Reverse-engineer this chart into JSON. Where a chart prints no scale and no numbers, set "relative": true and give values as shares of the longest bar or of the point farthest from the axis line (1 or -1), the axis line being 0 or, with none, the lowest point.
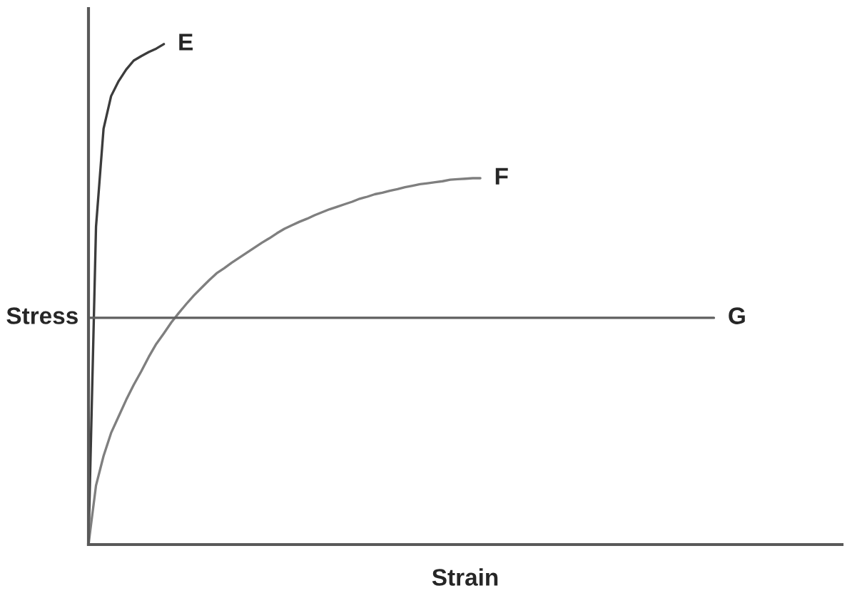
{
  "chart_data": {
    "type": "line",
    "relative": true,
    "xlabel": "Strain",
    "ylabel": "Stress",
    "categories": [
      null,
      null,
      null,
      null,
      null,
      null,
      null,
      null,
      null,
      null,
      null,
      null,
      null,
      null,
      null,
      null,
      null,
      null,
      null,
      null,
      null,
      null,
      null,
      null,
      null,
      null,
      null,
      null,
      null,
      null,
      null,
      null,
      null,
      null,
      null,
      null,
      null,
      null,
      null,
      null,
      null,
      null,
      null,
      null,
      null,
      null,
      null,
      null,
      null,
      null,
      null,
      null,
      null,
      null,
      null,
      null,
      null,
      null,
      null,
      null,
      null,
      null,
      null,
      null,
      null,
      null,
      null,
      null,
      null,
      null,
      null,
      null,
      null,
      null,
      null,
      null,
      null,
      null,
      null,
      null,
      null,
      null,
      null,
      null,
      null,
      null,
      null,
      null,
      null,
      null,
      null,
      null,
      null,
      null,
      null,
      null,
      null,
      null,
      null,
      null,
      null
    ],
    "series": [
      {
        "name": "E",
        "color": "#3c3c3c",
        "values": [
          0,
          0.635,
          0.831,
          0.896,
          0.926,
          0.949,
          0.967,
          0.976,
          0.984,
          0.991,
          1.0,
          null,
          null,
          null,
          null,
          null,
          null,
          null,
          null,
          null,
          null,
          null,
          null,
          null,
          null,
          null,
          null,
          null,
          null,
          null,
          null,
          null,
          null,
          null,
          null,
          null,
          null,
          null,
          null,
          null,
          null,
          null,
          null,
          null,
          null,
          null,
          null,
          null,
          null,
          null,
          null,
          null,
          null,
          null,
          null,
          null,
          null,
          null,
          null,
          null,
          null,
          null,
          null,
          null,
          null,
          null,
          null,
          null,
          null,
          null,
          null,
          null,
          null,
          null,
          null,
          null,
          null,
          null,
          null,
          null,
          null,
          null,
          null,
          null,
          null,
          null,
          null,
          null,
          null,
          null,
          null,
          null,
          null,
          null,
          null,
          null,
          null,
          null,
          null,
          null,
          null
        ]
      },
      {
        "name": "F",
        "color": "#7f7f7f",
        "values": [
          0,
          0.118,
          0.177,
          0.223,
          0.256,
          0.289,
          0.319,
          0.346,
          0.375,
          0.401,
          0.422,
          0.444,
          0.463,
          0.481,
          0.498,
          0.513,
          0.528,
          0.542,
          0.552,
          0.563,
          0.573,
          0.583,
          0.593,
          0.603,
          0.612,
          0.622,
          0.631,
          0.638,
          0.645,
          0.651,
          0.658,
          0.664,
          0.67,
          0.675,
          0.68,
          0.685,
          0.691,
          0.695,
          0.7,
          0.703,
          0.707,
          0.71,
          0.714,
          0.717,
          0.72,
          0.722,
          0.724,
          0.726,
          0.729,
          0.73,
          0.731,
          0.732,
          0.732,
          null,
          null,
          null,
          null,
          null,
          null,
          null,
          null,
          null,
          null,
          null,
          null,
          null,
          null,
          null,
          null,
          null,
          null,
          null,
          null,
          null,
          null,
          null,
          null,
          null,
          null,
          null,
          null,
          null,
          null,
          null,
          null,
          null,
          null,
          null,
          null,
          null,
          null,
          null,
          null,
          null,
          null,
          null,
          null,
          null,
          null,
          null,
          null
        ]
      },
      {
        "name": "G",
        "color": "#5f5f5f",
        "values": [
          0.453,
          0.453,
          0.453,
          0.453,
          0.453,
          0.453,
          0.453,
          0.453,
          0.453,
          0.453,
          0.453,
          0.453,
          0.453,
          0.453,
          0.453,
          0.453,
          0.453,
          0.453,
          0.453,
          0.453,
          0.453,
          0.453,
          0.453,
          0.453,
          0.453,
          0.453,
          0.453,
          0.453,
          0.453,
          0.453,
          0.453,
          0.453,
          0.453,
          0.453,
          0.453,
          0.453,
          0.453,
          0.453,
          0.453,
          0.453,
          0.453,
          0.453,
          0.453,
          0.453,
          0.453,
          0.453,
          0.453,
          0.453,
          0.453,
          0.453,
          0.453,
          0.453,
          0.453,
          0.453,
          0.453,
          0.453,
          0.453,
          0.453,
          0.453,
          0.453,
          0.453,
          0.453,
          0.453,
          0.453,
          0.453,
          0.453,
          0.453,
          0.453,
          0.453,
          0.453,
          0.453,
          0.453,
          0.453,
          0.453,
          0.453,
          0.453,
          0.453,
          0.453,
          0.453,
          0.453,
          0.453,
          0.453,
          0.453,
          0.453,
          null,
          null,
          null,
          null,
          null,
          null,
          null,
          null,
          null,
          null,
          null,
          null,
          null,
          null,
          null,
          null,
          null
        ]
      }
    ]
  }
}
